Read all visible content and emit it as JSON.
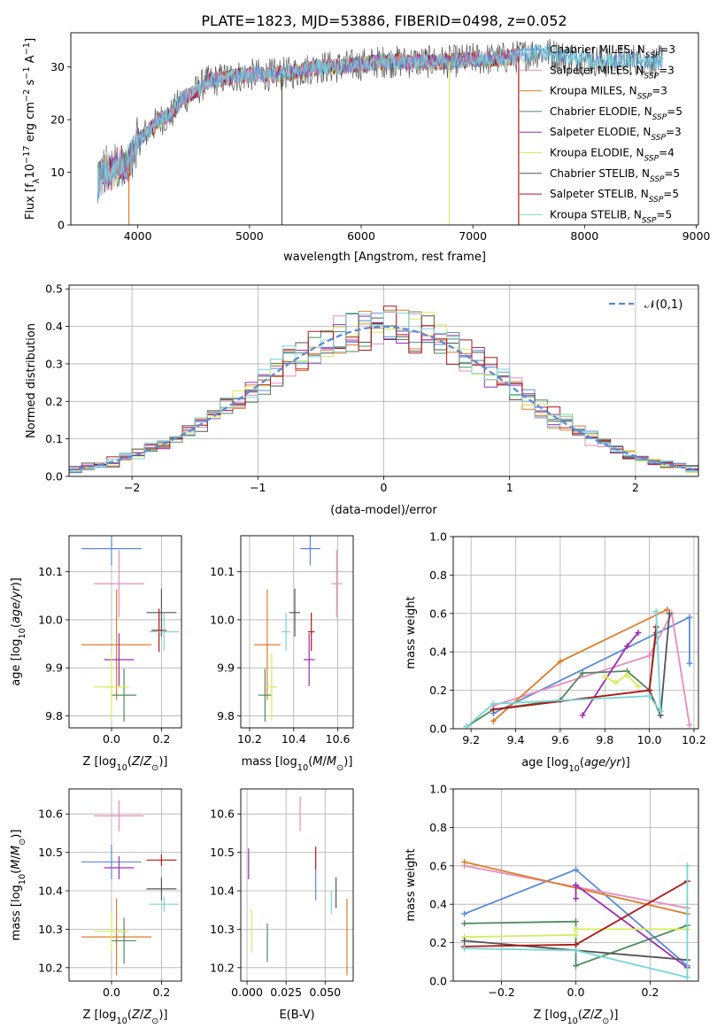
{
  "figure": {
    "title": "PLATE=1823, MJD=53886, FIBERID=0498, z=0.052"
  },
  "colors": {
    "chabrier_miles": "#5b8bd8",
    "salpeter_miles": "#e88cc0",
    "kroupa_miles": "#e07b26",
    "chabrier_elodie": "#4f8a5e",
    "salpeter_elodie": "#9a2fb2",
    "kroupa_elodie": "#d5ec5a",
    "chabrier_stelib": "#555555",
    "salpeter_stelib": "#b01818",
    "kroupa_stelib": "#79d6d6"
  },
  "chart_data": [
    {
      "id": "spectrum",
      "type": "line",
      "xlabel": "wavelength [Angstrom, rest frame]",
      "ylabel": "Flux [f_λ 10^-17 erg cm^-2 s^-1 A^-1]",
      "xlim": [
        3400,
        9020
      ],
      "ylim": [
        0,
        36.5
      ],
      "xticks": [
        "4000",
        "5000",
        "6000",
        "7000",
        "8000",
        "9000"
      ],
      "yticks": [
        "0",
        "10",
        "20",
        "30"
      ],
      "grid": false,
      "legend_position": "right",
      "legend": [
        {
          "key": "chabrier_miles",
          "text": "Chabrier MILES, N",
          "sub": "SSP",
          "tail": "=3"
        },
        {
          "key": "salpeter_miles",
          "text": "Salpeter MILES, N",
          "sub": "SSP",
          "tail": "=3"
        },
        {
          "key": "kroupa_miles",
          "text": "Kroupa MILES, N",
          "sub": "SSP",
          "tail": "=3"
        },
        {
          "key": "chabrier_elodie",
          "text": "Chabrier ELODIE, N",
          "sub": "SSP",
          "tail": "=5"
        },
        {
          "key": "salpeter_elodie",
          "text": "Salpeter ELODIE, N",
          "sub": "SSP",
          "tail": "=3"
        },
        {
          "key": "kroupa_elodie",
          "text": "Kroupa ELODIE, N",
          "sub": "SSP",
          "tail": "=4"
        },
        {
          "key": "chabrier_stelib",
          "text": "Chabrier STELIB, N",
          "sub": "SSP",
          "tail": "=5"
        },
        {
          "key": "salpeter_stelib",
          "text": "Salpeter STELIB, N",
          "sub": "SSP",
          "tail": "=5"
        },
        {
          "key": "kroupa_stelib",
          "text": "Kroupa STELIB, N",
          "sub": "SSP",
          "tail": "=5"
        }
      ],
      "continuum": [
        [
          3640,
          8
        ],
        [
          3700,
          10
        ],
        [
          3800,
          11
        ],
        [
          3900,
          11
        ],
        [
          3950,
          13
        ],
        [
          4000,
          16
        ],
        [
          4100,
          18
        ],
        [
          4200,
          20
        ],
        [
          4300,
          21
        ],
        [
          4400,
          24
        ],
        [
          4500,
          25
        ],
        [
          4600,
          27
        ],
        [
          4800,
          28
        ],
        [
          5000,
          28.5
        ],
        [
          5200,
          28.5
        ],
        [
          5400,
          29
        ],
        [
          5600,
          30
        ],
        [
          5800,
          30
        ],
        [
          6000,
          30.5
        ],
        [
          6200,
          31
        ],
        [
          6500,
          31
        ],
        [
          6800,
          31
        ],
        [
          7000,
          31.5
        ],
        [
          7200,
          31.5
        ],
        [
          7400,
          32
        ],
        [
          7600,
          33
        ],
        [
          7800,
          32
        ],
        [
          8000,
          31.5
        ],
        [
          8200,
          31
        ],
        [
          8400,
          31.5
        ],
        [
          8600,
          31
        ],
        [
          8700,
          31
        ]
      ],
      "spikes": [
        {
          "x": 3920,
          "key": "kroupa_miles"
        },
        {
          "x": 5290,
          "key": "chabrier_stelib"
        },
        {
          "x": 6790,
          "key": "kroupa_elodie"
        },
        {
          "x": 7410,
          "key": "salpeter_stelib"
        }
      ]
    },
    {
      "id": "residuals",
      "type": "histogram",
      "xlabel": "(data-model)/error",
      "ylabel": "Normed distribution",
      "xlim": [
        -2.5,
        2.5
      ],
      "ylim": [
        0,
        0.51
      ],
      "xticks": [
        -2,
        -1,
        0,
        1,
        2
      ],
      "yticks": [
        0.0,
        0.1,
        0.2,
        0.3,
        0.4,
        0.5
      ],
      "grid": true,
      "bin_width": 0.1,
      "legend": [
        {
          "text": "𝒩(0,1)",
          "style": "dashed",
          "color": "#5b8bd8"
        }
      ]
    },
    {
      "id": "age_vs_Z",
      "type": "errorbar",
      "xlabel": "Z [log10(Z/Z⊙)]",
      "ylabel": "age  [log10(age/yr)]",
      "xlim": [
        -0.17,
        0.28
      ],
      "ylim": [
        9.775,
        10.175
      ],
      "xticks": [
        0.0,
        0.2
      ],
      "yticks": [
        9.8,
        9.9,
        10.0,
        10.1
      ],
      "points": [
        {
          "key": "chabrier_miles",
          "x": 0.0,
          "xerr": 0.12,
          "y": 10.148,
          "yerr": 0.035
        },
        {
          "key": "salpeter_miles",
          "x": 0.03,
          "xerr": 0.1,
          "y": 10.075,
          "yerr": 0.07
        },
        {
          "key": "kroupa_miles",
          "x": 0.02,
          "xerr": 0.14,
          "y": 9.948,
          "yerr": 0.115
        },
        {
          "key": "chabrier_elodie",
          "x": 0.05,
          "xerr": 0.05,
          "y": 9.843,
          "yerr": 0.055
        },
        {
          "key": "salpeter_elodie",
          "x": 0.03,
          "xerr": 0.06,
          "y": 9.917,
          "yerr": 0.055
        },
        {
          "key": "kroupa_elodie",
          "x": 0.0,
          "xerr": 0.07,
          "y": 9.86,
          "yerr": 0.07
        },
        {
          "key": "chabrier_stelib",
          "x": 0.2,
          "xerr": 0.06,
          "y": 10.015,
          "yerr": 0.05
        },
        {
          "key": "salpeter_stelib",
          "x": 0.19,
          "xerr": 0.03,
          "y": 9.978,
          "yerr": 0.045
        },
        {
          "key": "kroupa_stelib",
          "x": 0.21,
          "xerr": 0.06,
          "y": 9.975,
          "yerr": 0.04
        }
      ]
    },
    {
      "id": "age_vs_mass",
      "type": "errorbar",
      "xlabel": "mass [log10(M/M⊙)]",
      "ylabel": "",
      "xlim": [
        10.16,
        10.67
      ],
      "ylim": [
        9.775,
        10.175
      ],
      "xticks": [
        10.2,
        10.4,
        10.6
      ],
      "yticks": [
        9.8,
        9.9,
        10.0,
        10.1
      ],
      "points": [
        {
          "key": "chabrier_miles",
          "x": 10.475,
          "xerr": 0.045,
          "y": 10.148,
          "yerr": 0.035
        },
        {
          "key": "salpeter_miles",
          "x": 10.595,
          "xerr": 0.025,
          "y": 10.075,
          "yerr": 0.07
        },
        {
          "key": "kroupa_miles",
          "x": 10.28,
          "xerr": 0.06,
          "y": 9.948,
          "yerr": 0.115
        },
        {
          "key": "chabrier_elodie",
          "x": 10.27,
          "xerr": 0.03,
          "y": 9.843,
          "yerr": 0.055
        },
        {
          "key": "salpeter_elodie",
          "x": 10.47,
          "xerr": 0.025,
          "y": 9.917,
          "yerr": 0.055
        },
        {
          "key": "kroupa_elodie",
          "x": 10.3,
          "xerr": 0.025,
          "y": 9.86,
          "yerr": 0.07
        },
        {
          "key": "chabrier_stelib",
          "x": 10.405,
          "xerr": 0.025,
          "y": 10.015,
          "yerr": 0.05
        },
        {
          "key": "salpeter_stelib",
          "x": 10.48,
          "xerr": 0.015,
          "y": 9.975,
          "yerr": 0.04
        },
        {
          "key": "kroupa_stelib",
          "x": 10.365,
          "xerr": 0.02,
          "y": 9.975,
          "yerr": 0.04
        }
      ]
    },
    {
      "id": "weight_vs_age",
      "type": "line",
      "xlabel": "age  [log10(age/yr)]",
      "ylabel": "mass weight",
      "xlim": [
        9.12,
        10.22
      ],
      "ylim": [
        0.0,
        1.0
      ],
      "xticks": [
        9.2,
        9.4,
        9.6,
        9.8,
        10.0,
        10.2
      ],
      "yticks": [
        0.0,
        0.2,
        0.4,
        0.6,
        0.8,
        1.0
      ],
      "grid": true,
      "series": [
        {
          "key": "chabrier_miles",
          "x": [
            9.3,
            10.18,
            10.18
          ],
          "y": [
            0.08,
            0.58,
            0.34
          ]
        },
        {
          "key": "salpeter_miles",
          "x": [
            9.3,
            10.0,
            10.1,
            10.18
          ],
          "y": [
            0.12,
            0.38,
            0.6,
            0.02
          ]
        },
        {
          "key": "kroupa_miles",
          "x": [
            9.3,
            9.6,
            10.08
          ],
          "y": [
            0.04,
            0.35,
            0.62
          ]
        },
        {
          "key": "chabrier_elodie",
          "x": [
            9.18,
            9.3,
            9.6,
            9.7,
            9.9,
            10.0,
            10.03
          ],
          "y": [
            0.01,
            0.1,
            0.15,
            0.29,
            0.3,
            0.2,
            0.5
          ]
        },
        {
          "key": "salpeter_elodie",
          "x": [
            9.7,
            9.9,
            9.95
          ],
          "y": [
            0.07,
            0.43,
            0.5
          ]
        },
        {
          "key": "kroupa_elodie",
          "x": [
            9.8,
            9.85,
            9.9,
            9.95
          ],
          "y": [
            0.27,
            0.24,
            0.28,
            0.22
          ]
        },
        {
          "key": "chabrier_stelib",
          "x": [
            9.3,
            10.0,
            10.05,
            10.09
          ],
          "y": [
            0.1,
            0.2,
            0.07,
            0.6
          ]
        },
        {
          "key": "salpeter_stelib",
          "x": [
            9.3,
            10.0,
            10.03
          ],
          "y": [
            0.1,
            0.2,
            0.53
          ]
        },
        {
          "key": "kroupa_stelib",
          "x": [
            9.18,
            9.3,
            10.0,
            10.05,
            10.03
          ],
          "y": [
            0.01,
            0.13,
            0.17,
            0.09,
            0.61
          ]
        }
      ]
    },
    {
      "id": "mass_vs_Z",
      "type": "errorbar",
      "xlabel": "Z [log10(Z/Z⊙)]",
      "ylabel": "mass [log10(M/M⊙)]",
      "xlim": [
        -0.17,
        0.28
      ],
      "ylim": [
        10.165,
        10.665
      ],
      "xticks": [
        0.0,
        0.2
      ],
      "yticks": [
        10.2,
        10.3,
        10.4,
        10.5,
        10.6
      ],
      "points": [
        {
          "key": "chabrier_miles",
          "x": 0.0,
          "xerr": 0.12,
          "y": 10.475,
          "yerr": 0.045
        },
        {
          "key": "salpeter_miles",
          "x": 0.03,
          "xerr": 0.1,
          "y": 10.595,
          "yerr": 0.04
        },
        {
          "key": "kroupa_miles",
          "x": 0.02,
          "xerr": 0.14,
          "y": 10.28,
          "yerr": 0.1
        },
        {
          "key": "chabrier_elodie",
          "x": 0.05,
          "xerr": 0.05,
          "y": 10.27,
          "yerr": 0.06
        },
        {
          "key": "salpeter_elodie",
          "x": 0.03,
          "xerr": 0.06,
          "y": 10.46,
          "yerr": 0.03
        },
        {
          "key": "kroupa_elodie",
          "x": 0.0,
          "xerr": 0.07,
          "y": 10.295,
          "yerr": 0.05
        },
        {
          "key": "chabrier_stelib",
          "x": 0.2,
          "xerr": 0.06,
          "y": 10.405,
          "yerr": 0.03
        },
        {
          "key": "salpeter_stelib",
          "x": 0.2,
          "xerr": 0.06,
          "y": 10.48,
          "yerr": 0.015
        },
        {
          "key": "kroupa_stelib",
          "x": 0.21,
          "xerr": 0.06,
          "y": 10.365,
          "yerr": 0.02
        }
      ]
    },
    {
      "id": "mass_vs_EBV",
      "type": "errorbar",
      "xlabel": "E(B-V)",
      "ylabel": "",
      "xlim": [
        -0.004,
        0.068
      ],
      "ylim": [
        10.165,
        10.665
      ],
      "xticks": [
        "0.000",
        "0.025",
        "0.050"
      ],
      "yticks": [
        10.2,
        10.3,
        10.4,
        10.5,
        10.6
      ],
      "points": [
        {
          "key": "salpeter_miles",
          "x": 0.034,
          "xerr": 0.0,
          "y": 10.6,
          "yerr": 0.045
        },
        {
          "key": "chabrier_miles",
          "x": 0.044,
          "xerr": 0.0,
          "y": 10.415,
          "yerr": 0.04
        },
        {
          "key": "kroupa_miles",
          "x": 0.064,
          "xerr": 0.0,
          "y": 10.28,
          "yerr": 0.1
        },
        {
          "key": "chabrier_elodie",
          "x": 0.013,
          "xerr": 0.0,
          "y": 10.265,
          "yerr": 0.05
        },
        {
          "key": "salpeter_elodie",
          "x": 0.001,
          "xerr": 0.0,
          "y": 10.47,
          "yerr": 0.04
        },
        {
          "key": "kroupa_elodie",
          "x": 0.003,
          "xerr": 0.0,
          "y": 10.295,
          "yerr": 0.055
        },
        {
          "key": "chabrier_stelib",
          "x": 0.057,
          "xerr": 0.0,
          "y": 10.395,
          "yerr": 0.04
        },
        {
          "key": "salpeter_stelib",
          "x": 0.044,
          "xerr": 0.0,
          "y": 10.485,
          "yerr": 0.03
        },
        {
          "key": "kroupa_stelib",
          "x": 0.054,
          "xerr": 0.0,
          "y": 10.37,
          "yerr": 0.03
        }
      ]
    },
    {
      "id": "weight_vs_Z",
      "type": "line",
      "xlabel": "Z [log10(Z/Z⊙)]",
      "ylabel": "mass weight",
      "xlim": [
        -0.33,
        0.33
      ],
      "ylim": [
        0.0,
        1.0
      ],
      "xticks": [
        -0.2,
        0.0,
        0.2
      ],
      "yticks": [
        0.0,
        0.2,
        0.4,
        0.6,
        0.8,
        1.0
      ],
      "grid": true,
      "series": [
        {
          "key": "chabrier_miles",
          "x": [
            -0.3,
            0.0,
            0.3
          ],
          "y": [
            0.35,
            0.58,
            0.08
          ]
        },
        {
          "key": "salpeter_miles",
          "x": [
            -0.3,
            0.3
          ],
          "y": [
            0.6,
            0.38
          ]
        },
        {
          "key": "kroupa_miles",
          "x": [
            -0.3,
            0.3
          ],
          "y": [
            0.62,
            0.35
          ]
        },
        {
          "key": "chabrier_elodie",
          "x": [
            -0.3,
            0.0,
            0.0,
            0.3
          ],
          "y": [
            0.3,
            0.31,
            0.08,
            0.29
          ]
        },
        {
          "key": "salpeter_elodie",
          "x": [
            0.0,
            0.0,
            0.3
          ],
          "y": [
            0.43,
            0.5,
            0.07
          ]
        },
        {
          "key": "kroupa_elodie",
          "x": [
            -0.3,
            0.0,
            0.0,
            0.3
          ],
          "y": [
            0.23,
            0.24,
            0.27,
            0.27
          ]
        },
        {
          "key": "chabrier_stelib",
          "x": [
            -0.3,
            0.0,
            0.3
          ],
          "y": [
            0.21,
            0.16,
            0.11
          ]
        },
        {
          "key": "salpeter_stelib",
          "x": [
            -0.3,
            0.0,
            0.3
          ],
          "y": [
            0.18,
            0.19,
            0.52
          ]
        },
        {
          "key": "kroupa_stelib",
          "x": [
            -0.3,
            0.0,
            0.3,
            0.3
          ],
          "y": [
            0.17,
            0.16,
            0.02,
            0.6
          ]
        }
      ]
    }
  ]
}
